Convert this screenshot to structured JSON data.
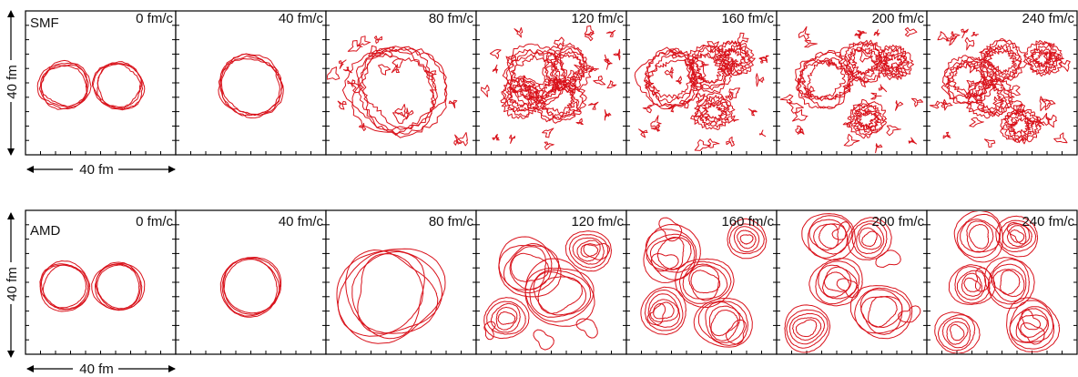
{
  "rows": [
    {
      "label": "SMF",
      "method": "smf"
    },
    {
      "label": "AMD",
      "method": "amd"
    }
  ],
  "time_labels": [
    "0 fm/c",
    "40 fm/c",
    "80 fm/c",
    "120 fm/c",
    "160 fm/c",
    "200 fm/c",
    "240 fm/c"
  ],
  "scale": {
    "vertical_label": "40 fm",
    "horizontal_label": "40 fm"
  },
  "colors": {
    "contour": "#d9121b",
    "frame": "#000000",
    "arrow": "#000000"
  }
}
